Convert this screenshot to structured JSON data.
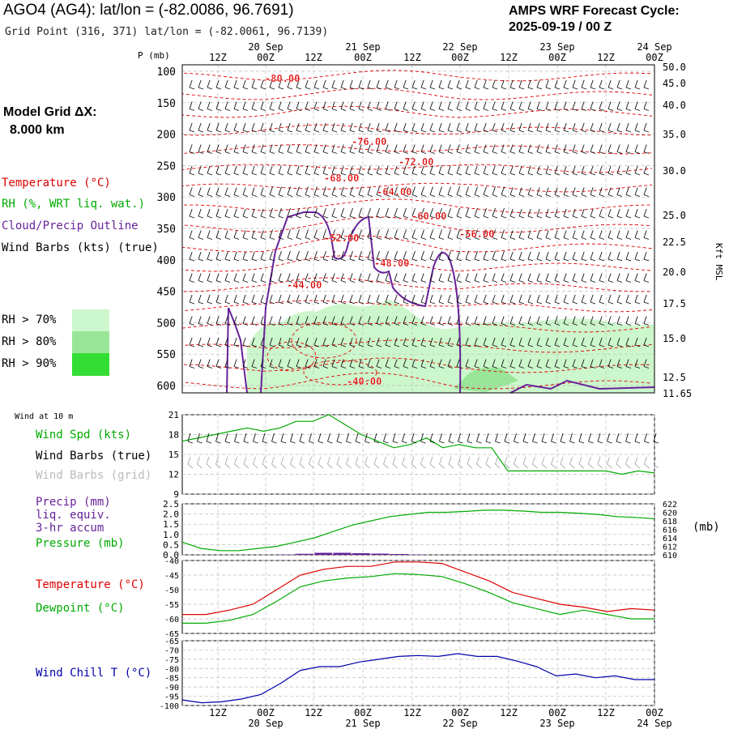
{
  "header": {
    "title": "AGO4 (AG4):  lat/lon = (-82.0086, 96.7691)",
    "subtitle": "Grid Point (316, 371) lat/lon = (-82.0061, 96.7139)",
    "cycle_line1": "AMPS WRF Forecast Cycle:",
    "cycle_line2": "2025-09-19 / 00  Z",
    "grid_line1": "Model Grid ΔX:",
    "grid_line2": "8.000 km"
  },
  "legend": {
    "temperature": "Temperature (°C)",
    "rh": "RH (%, WRT liq. wat.)",
    "cloud": "Cloud/Precip Outline",
    "wind": "Wind Barbs (kts) (true)",
    "rh70": "RH > 70%",
    "rh80": "RH > 80%",
    "rh90": "RH > 90%",
    "wind10m": "Wind at 10 m",
    "wind_spd": "Wind Spd (kts)",
    "barbs_true": "Wind Barbs (true)",
    "barbs_grid": "Wind Barbs (grid)",
    "precip1": "Precip (mm)",
    "precip2": "liq. equiv.",
    "precip3": "3-hr accum",
    "pressure": "Pressure (mb)",
    "temp2": "Temperature (°C)",
    "dewpoint": "Dewpoint (°C)",
    "windchill": "Wind Chill T (°C)",
    "mb_unit": "(mb)"
  },
  "colors": {
    "temperature": "#dd0000",
    "rh_line": "#00bb00",
    "cloud": "#662299",
    "rh70": "#ccf7cc",
    "rh80": "#99e699",
    "rh90": "#33dd33",
    "windchill": "#0000aa",
    "grid_barbs": "#aaaaaa",
    "precip": "#662299"
  },
  "time_axis": {
    "hour_labels": [
      "12Z",
      "00Z",
      "12Z",
      "00Z",
      "12Z",
      "00Z",
      "12Z",
      "00Z",
      "12Z",
      "00Z"
    ],
    "date_labels": [
      "20 Sep",
      "21 Sep",
      "22 Sep",
      "23 Sep",
      "24 Sep"
    ]
  },
  "chart_data": [
    {
      "type": "line",
      "panel": "vertical cross-section",
      "ylabel": "P (mb)",
      "right_ylabel": "Kft MSL",
      "y_ticks": [
        100,
        150,
        200,
        250,
        300,
        350,
        400,
        450,
        500,
        550,
        600
      ],
      "right_ticks": [
        "50.0",
        "45.0",
        "40.0",
        "35.0",
        "30.0",
        "25.0",
        "22.5",
        "20.0",
        "17.5",
        "15.0",
        "12.5",
        "11.65"
      ],
      "temperature_contour_labels": [
        "-80.00",
        "-76.00",
        "-72.00",
        "-68.00",
        "-64.00",
        "-60.00",
        "-56.00",
        "-52.00",
        "-48.00",
        "-44.00",
        "-40.00"
      ]
    },
    {
      "type": "line",
      "panel": "wind at 10 m",
      "series": [
        {
          "name": "Wind Spd (kts)",
          "values": [
            17,
            17.5,
            18,
            18.5,
            19,
            18.5,
            19,
            20,
            20,
            21,
            19.5,
            18,
            17,
            16,
            16.5,
            17.5,
            16,
            16.5,
            16,
            16,
            12.5,
            12.5,
            12.5,
            12.5,
            12.5,
            12.5,
            12.5,
            12,
            12.5,
            12.2
          ]
        }
      ],
      "y_ticks": [
        9,
        12,
        15,
        18,
        21
      ],
      "ylim": [
        9,
        21
      ]
    },
    {
      "type": "line",
      "panel": "precip and pressure",
      "left_ticks": [
        "0.0",
        "0.5",
        "1.0",
        "1.5",
        "2.0",
        "2.5"
      ],
      "right_ticks": [
        "610",
        "612",
        "614",
        "616",
        "618",
        "620",
        "622"
      ],
      "series": [
        {
          "name": "Pressure (mb)",
          "values": [
            613,
            611.5,
            611,
            611,
            611.5,
            612,
            613,
            614,
            615.5,
            617,
            618,
            619,
            619.5,
            620,
            620,
            620.2,
            620.5,
            620.5,
            620.3,
            620,
            620,
            619.8,
            619.5,
            619,
            618.8,
            618.5
          ]
        },
        {
          "name": "Precip (mm)",
          "values": [
            0,
            0,
            0,
            0,
            0,
            0.02,
            0.05,
            0.1,
            0.1,
            0.08,
            0.06,
            0.04,
            0.02,
            0,
            0,
            0,
            0,
            0,
            0,
            0,
            0,
            0,
            0,
            0,
            0,
            0
          ]
        }
      ]
    },
    {
      "type": "line",
      "panel": "temperature and dewpoint",
      "y_ticks": [
        -40,
        -45,
        -50,
        -55,
        -60,
        -65
      ],
      "ylim": [
        -65,
        -40
      ],
      "series": [
        {
          "name": "Temperature (°C)",
          "values": [
            -58.5,
            -58.5,
            -57,
            -55,
            -50,
            -45,
            -43,
            -42,
            -42,
            -40.5,
            -40.5,
            -41,
            -44,
            -47,
            -51,
            -53,
            -55,
            -56,
            -57.5,
            -56.5,
            -57
          ]
        },
        {
          "name": "Dewpoint (°C)",
          "values": [
            -61.5,
            -61.5,
            -60.5,
            -58.5,
            -54,
            -49,
            -47,
            -46,
            -45.5,
            -44.5,
            -44.8,
            -45.5,
            -48,
            -51,
            -54.5,
            -56.5,
            -58.5,
            -57,
            -58.5,
            -60,
            -60
          ]
        }
      ]
    },
    {
      "type": "line",
      "panel": "wind chill",
      "y_ticks": [
        -65,
        -70,
        -75,
        -80,
        -85,
        -90,
        -95,
        -100
      ],
      "ylim": [
        -100,
        -65
      ],
      "series": [
        {
          "name": "Wind Chill T (°C)",
          "values": [
            -97,
            -98.5,
            -98,
            -96.5,
            -94,
            -88,
            -81,
            -79,
            -79,
            -76.5,
            -75,
            -73.5,
            -73,
            -73.5,
            -72,
            -73.5,
            -73.5,
            -76,
            -79,
            -84,
            -83,
            -85,
            -84,
            -86,
            -86
          ]
        }
      ]
    }
  ]
}
